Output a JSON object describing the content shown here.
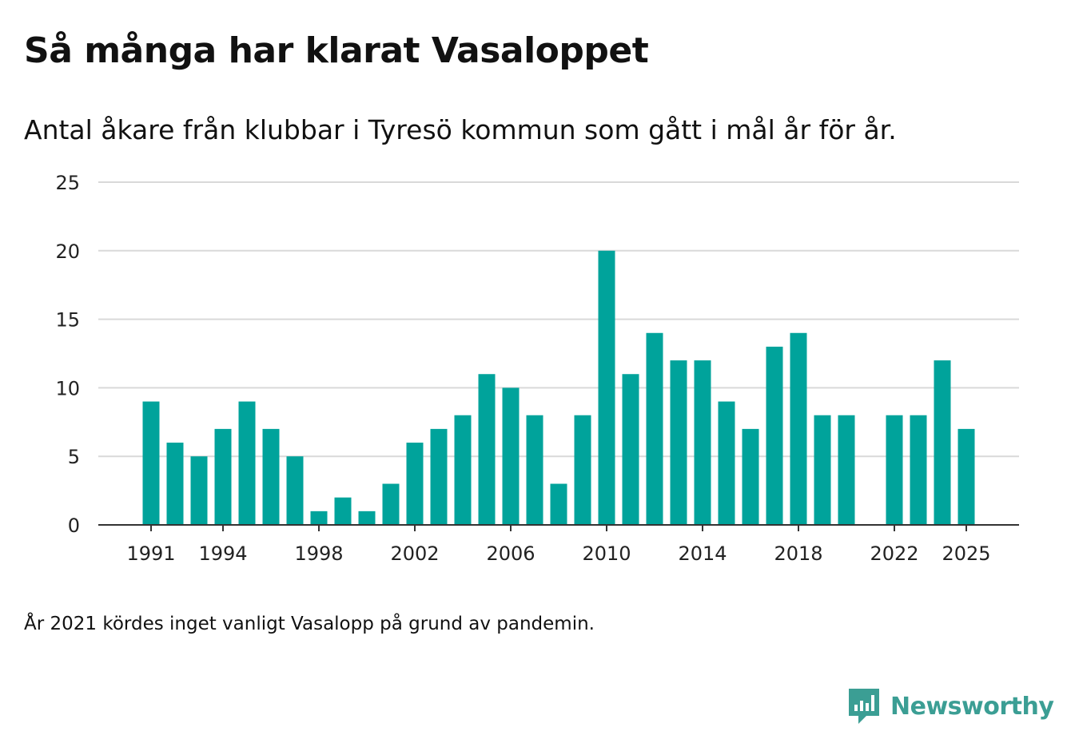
{
  "title": "Så många har klarat Vasaloppet",
  "subtitle": "Antal åkare från klubbar i Tyresö kommun som gått i mål år för år.",
  "note": "År 2021 kördes inget vanligt Vasalopp på grund av pandemin.",
  "brand": {
    "name": "Newsworthy",
    "color": "#3b9e94"
  },
  "colors": {
    "bar": "#00a39b",
    "grid": "#d9d9d9",
    "axis": "#333333"
  },
  "chart_data": {
    "type": "bar",
    "title": "Så många har klarat Vasaloppet",
    "xlabel": "",
    "ylabel": "",
    "ylim": [
      0,
      25
    ],
    "yticks": [
      0,
      5,
      10,
      15,
      20,
      25
    ],
    "xtick_labels": [
      "1991",
      "1994",
      "1998",
      "2002",
      "2006",
      "2010",
      "2014",
      "2018",
      "2022",
      "2025"
    ],
    "categories": [
      "1991",
      "1992",
      "1993",
      "1994",
      "1995",
      "1996",
      "1997",
      "1998",
      "1999",
      "2000",
      "2001",
      "2002",
      "2003",
      "2004",
      "2005",
      "2006",
      "2007",
      "2008",
      "2009",
      "2010",
      "2011",
      "2012",
      "2013",
      "2014",
      "2015",
      "2016",
      "2017",
      "2018",
      "2019",
      "2020",
      "2021",
      "2022",
      "2023",
      "2024",
      "2025"
    ],
    "values": [
      9,
      6,
      5,
      7,
      9,
      7,
      5,
      1,
      2,
      1,
      3,
      6,
      7,
      8,
      11,
      10,
      8,
      3,
      8,
      20,
      11,
      14,
      12,
      12,
      9,
      7,
      13,
      14,
      8,
      8,
      null,
      8,
      8,
      12,
      7
    ],
    "grid": true,
    "legend": "none"
  }
}
